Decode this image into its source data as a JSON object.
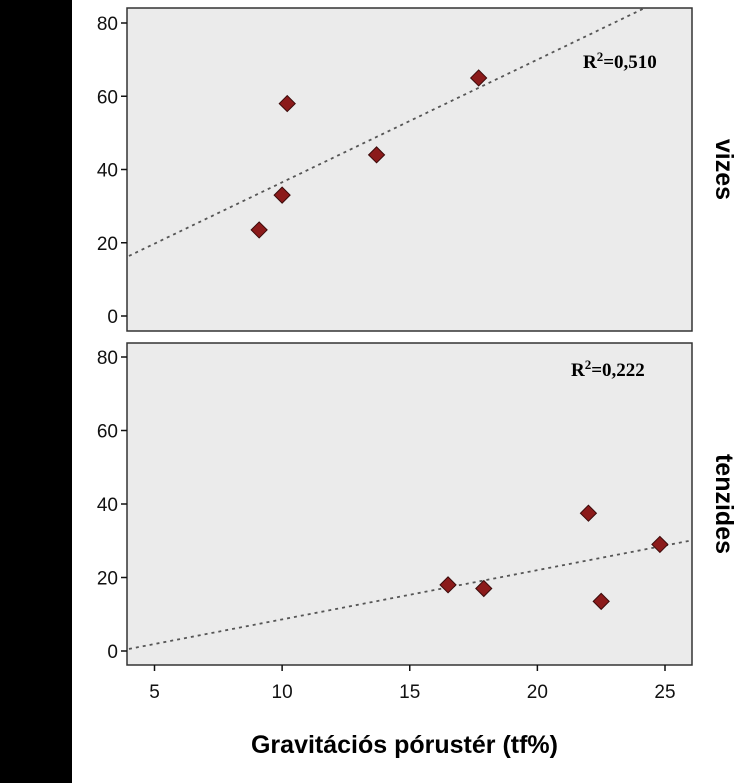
{
  "chart_data": {
    "type": "scatter",
    "xlabel": "Gravitációs pórustér (tf%)",
    "xlim": [
      4,
      26
    ],
    "x_ticks": [
      5,
      10,
      15,
      20,
      25
    ],
    "ylim": [
      -2,
      84
    ],
    "y_ticks": [
      0,
      20,
      40,
      60,
      80
    ],
    "grid": false,
    "colors": {
      "panel_bg": "#ebebeb",
      "marker": "#8b1a1a",
      "marker_edge": "#3a0a0a",
      "trend": "#555555"
    },
    "marker_shape": "diamond-icon",
    "panels": [
      {
        "facet_label": "vizes",
        "r2_prefix": "R",
        "r2_exp": "2",
        "r2_value": "=0,510",
        "points": [
          {
            "x": 9.1,
            "y": 23.5
          },
          {
            "x": 10.0,
            "y": 33
          },
          {
            "x": 10.2,
            "y": 58
          },
          {
            "x": 13.7,
            "y": 44
          },
          {
            "x": 17.7,
            "y": 65
          }
        ],
        "trendline": {
          "slope": 3.35,
          "intercept": 3.0
        }
      },
      {
        "facet_label": "tenzides",
        "r2_prefix": "R",
        "r2_exp": "2",
        "r2_value": "=0,222",
        "points": [
          {
            "x": 16.5,
            "y": 18
          },
          {
            "x": 17.9,
            "y": 17
          },
          {
            "x": 22.0,
            "y": 37.5
          },
          {
            "x": 22.5,
            "y": 13.5
          },
          {
            "x": 24.8,
            "y": 29
          }
        ],
        "trendline": {
          "slope": 1.34,
          "intercept": -4.8
        }
      }
    ]
  }
}
